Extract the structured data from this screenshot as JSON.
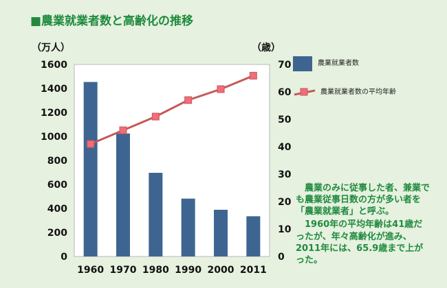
{
  "title": "■農業就業者数と高齢化の推移",
  "chart_data": {
    "type": "bar",
    "categories": [
      "1960",
      "1970",
      "1980",
      "1990",
      "2000",
      "2011"
    ],
    "left_axis_label": "（万人）",
    "right_axis_label": "（歳）",
    "left_ylim": [
      0,
      1600
    ],
    "right_ylim": [
      0,
      70
    ],
    "left_ticks": [
      0,
      200,
      400,
      600,
      800,
      1000,
      1200,
      1400,
      1600
    ],
    "right_ticks": [
      0,
      10,
      20,
      30,
      40,
      50,
      60,
      70
    ],
    "series": [
      {
        "name": "農業就業者数",
        "type": "bar",
        "axis": "left",
        "color": "#3e6591",
        "values": [
          1454,
          1025,
          697,
          482,
          389,
          335
        ]
      },
      {
        "name": "農業就業者数の平均年齢",
        "type": "line",
        "axis": "right",
        "color": "#c65858",
        "marker_color": "#f06d7a",
        "values": [
          41,
          46,
          51,
          57,
          61,
          65.9
        ]
      }
    ],
    "grid": false,
    "legend_position": "right"
  },
  "legend": {
    "items": [
      {
        "label": "農業就業者数"
      },
      {
        "label": "農業就業者数の平均年齢"
      }
    ]
  },
  "note": {
    "paragraph1": "　農業のみに従事した者、兼業でも農業従事日数の方が多い者を「農業就業者」と呼ぶ。",
    "paragraph2": "　1960年の平均年齢は41歳だったが、年々高齢化が進み、2011年には、65.9歳まで上がった。"
  }
}
